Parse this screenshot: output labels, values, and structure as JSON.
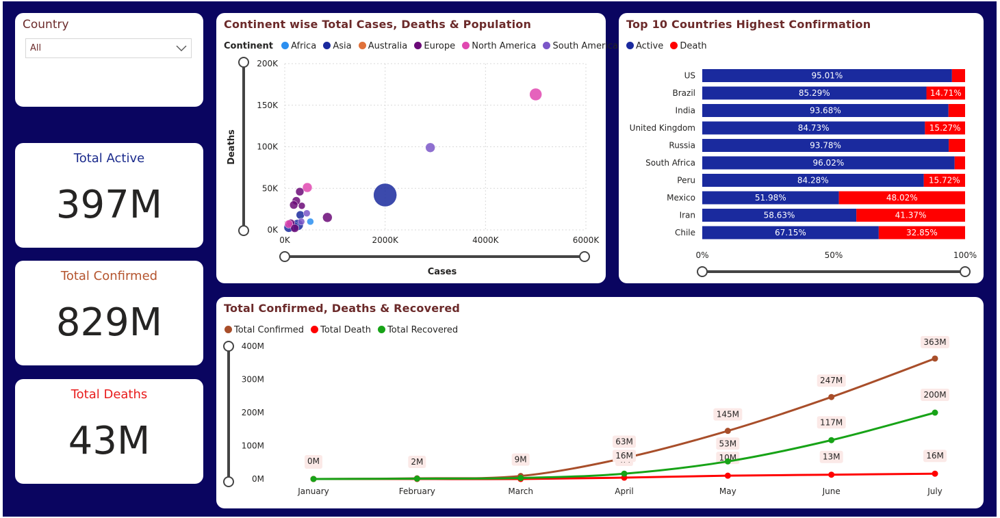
{
  "slicer": {
    "title": "Country",
    "selected": "All"
  },
  "kpis": [
    {
      "title": "Total Active",
      "value": "397M",
      "color": "#1a2a8c"
    },
    {
      "title": "Total Confirmed",
      "value": "829M",
      "color": "#b4542e"
    },
    {
      "title": "Total Deaths",
      "value": "43M",
      "color": "#e81c1c"
    }
  ],
  "scatter": {
    "title": "Continent wise Total Cases, Deaths & Population",
    "legend_title": "Continent",
    "legend": [
      {
        "name": "Africa",
        "color": "#2b8ff0"
      },
      {
        "name": "Asia",
        "color": "#1a2a9e"
      },
      {
        "name": "Australia",
        "color": "#e0713a"
      },
      {
        "name": "Europe",
        "color": "#6b0a78"
      },
      {
        "name": "North America",
        "color": "#e048b0"
      },
      {
        "name": "South America",
        "color": "#7b57c8"
      }
    ]
  },
  "bars": {
    "title": "Top 10 Countries Highest Confirmation",
    "legend": [
      {
        "name": "Active",
        "color": "#1a2a9e"
      },
      {
        "name": "Death",
        "color": "#ff0000"
      }
    ]
  },
  "line": {
    "title": "Total Confirmed, Deaths & Recovered",
    "legend": [
      {
        "name": "Total Confirmed",
        "color": "#a84e2a"
      },
      {
        "name": "Total Death",
        "color": "#ff0000"
      },
      {
        "name": "Total Recovered",
        "color": "#17a317"
      }
    ]
  },
  "chart_data": [
    {
      "type": "scatter",
      "title": "Continent wise Total Cases, Deaths & Population",
      "xlabel": "Cases",
      "ylabel": "Deaths",
      "xlim": [
        0,
        6000
      ],
      "ylim": [
        0,
        200
      ],
      "x_unit": "K",
      "y_unit": "K",
      "x_ticks": [
        "0K",
        "2000K",
        "4000K",
        "6000K"
      ],
      "y_ticks": [
        "0K",
        "50K",
        "100K",
        "150K",
        "200K"
      ],
      "grid": true,
      "points": [
        {
          "series": "North America",
          "x": 5000,
          "y": 163,
          "r": 9
        },
        {
          "series": "South America",
          "x": 2900,
          "y": 99,
          "r": 7
        },
        {
          "series": "Asia",
          "x": 2000,
          "y": 42,
          "r": 17
        },
        {
          "series": "Europe",
          "x": 850,
          "y": 15,
          "r": 7
        },
        {
          "series": "North America",
          "x": 450,
          "y": 51,
          "r": 7
        },
        {
          "series": "Europe",
          "x": 300,
          "y": 46,
          "r": 6
        },
        {
          "series": "Europe",
          "x": 230,
          "y": 35,
          "r": 6
        },
        {
          "series": "Europe",
          "x": 340,
          "y": 29,
          "r": 5
        },
        {
          "series": "Europe",
          "x": 180,
          "y": 30,
          "r": 6
        },
        {
          "series": "South America",
          "x": 440,
          "y": 20,
          "r": 5
        },
        {
          "series": "Asia",
          "x": 310,
          "y": 18,
          "r": 6
        },
        {
          "series": "Africa",
          "x": 510,
          "y": 10,
          "r": 5
        },
        {
          "series": "South America",
          "x": 330,
          "y": 10,
          "r": 5
        },
        {
          "series": "Europe",
          "x": 120,
          "y": 8,
          "r": 6
        },
        {
          "series": "North America",
          "x": 80,
          "y": 7,
          "r": 6
        },
        {
          "series": "Asia",
          "x": 260,
          "y": 6,
          "r": 8
        },
        {
          "series": "Asia",
          "x": 180,
          "y": 4,
          "r": 7
        },
        {
          "series": "Asia",
          "x": 80,
          "y": 3,
          "r": 7
        },
        {
          "series": "Europe",
          "x": 200,
          "y": 2,
          "r": 6
        }
      ]
    },
    {
      "type": "bar",
      "orientation": "horizontal-stacked-100",
      "title": "Top 10 Countries Highest Confirmation",
      "categories": [
        "US",
        "Brazil",
        "India",
        "United Kingdom",
        "Russia",
        "South Africa",
        "Peru",
        "Mexico",
        "Iran",
        "Chile"
      ],
      "series": [
        {
          "name": "Active",
          "values": [
            95.01,
            85.29,
            93.68,
            84.73,
            93.78,
            96.02,
            84.28,
            51.98,
            58.63,
            67.15
          ],
          "labels": [
            "95.01%",
            "85.29%",
            "93.68%",
            "84.73%",
            "93.78%",
            "96.02%",
            "84.28%",
            "51.98%",
            "58.63%",
            "67.15%"
          ]
        },
        {
          "name": "Death",
          "values": [
            4.99,
            14.71,
            6.32,
            15.27,
            6.22,
            3.98,
            15.72,
            48.02,
            41.37,
            32.85
          ],
          "labels": [
            "",
            "14.71%",
            "",
            "15.27%",
            "",
            "",
            "15.72%",
            "48.02%",
            "41.37%",
            "32.85%"
          ]
        }
      ],
      "x_ticks": [
        "0%",
        "50%",
        "100%"
      ],
      "xlim": [
        0,
        100
      ]
    },
    {
      "type": "line",
      "title": "Total Confirmed, Deaths & Recovered",
      "categories": [
        "January",
        "February",
        "March",
        "April",
        "May",
        "June",
        "July"
      ],
      "ylim": [
        0,
        400
      ],
      "y_unit": "M",
      "y_ticks": [
        "0M",
        "100M",
        "200M",
        "300M",
        "400M"
      ],
      "series": [
        {
          "name": "Total Confirmed",
          "values": [
            0,
            2,
            9,
            63,
            145,
            247,
            363
          ],
          "labels": [
            "0M",
            "2M",
            "9M",
            "63M",
            "145M",
            "247M",
            "363M"
          ]
        },
        {
          "name": "Total Death",
          "values": [
            0,
            0,
            0,
            4,
            10,
            13,
            16
          ],
          "labels": [
            "0M",
            "",
            "",
            "4M",
            "10M",
            "13M",
            "16M"
          ]
        },
        {
          "name": "Total Recovered",
          "values": [
            0,
            1,
            3,
            16,
            53,
            117,
            200
          ],
          "labels": [
            "",
            "",
            "",
            "16M",
            "53M",
            "117M",
            "200M"
          ]
        }
      ]
    }
  ]
}
